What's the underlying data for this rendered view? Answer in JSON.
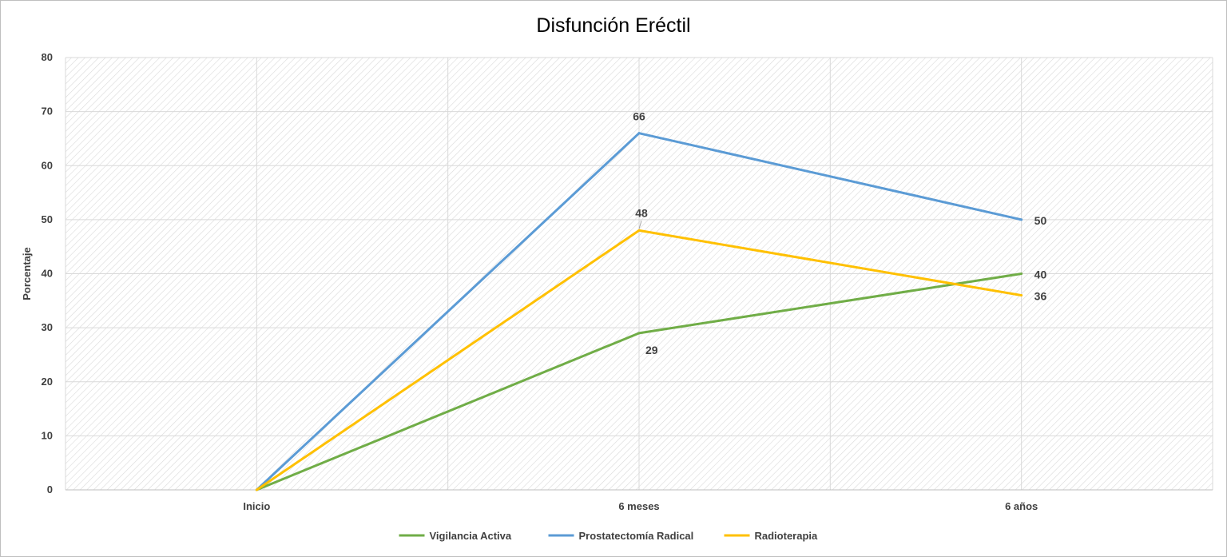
{
  "chart_data": {
    "type": "line",
    "title": "Disfunción Eréctil",
    "xlabel": "",
    "ylabel": "Porcentaje",
    "categories": [
      "Inicio",
      "6 meses",
      "6 años"
    ],
    "ylim": [
      0,
      80
    ],
    "yticks": [
      0,
      10,
      20,
      30,
      40,
      50,
      60,
      70,
      80
    ],
    "grid": true,
    "legend_position": "bottom",
    "series": [
      {
        "name": "Vigilancia Activa",
        "color": "#70ad47",
        "values": [
          0,
          29,
          40
        ],
        "labels": [
          "",
          "29",
          "40"
        ]
      },
      {
        "name": "Prostatectomía Radical",
        "color": "#5b9bd5",
        "values": [
          0,
          66,
          50
        ],
        "labels": [
          "",
          "66",
          "50"
        ]
      },
      {
        "name": "Radioterapia",
        "color": "#ffc000",
        "values": [
          0,
          48,
          36
        ],
        "labels": [
          "",
          "48",
          "36"
        ]
      }
    ]
  }
}
